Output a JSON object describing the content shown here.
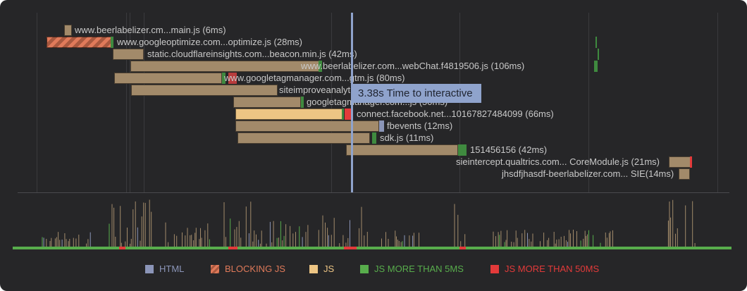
{
  "colors": {
    "background": "#262628",
    "html": "#8b95b8",
    "blocking_js": "#e07a5a",
    "js": "#edc584",
    "js_muted": "#a28a6a",
    "js_more_than_5ms": "#58ad4c",
    "js_more_than_50ms": "#e33a3a",
    "tti": "#8fa3cc"
  },
  "requests": [
    {
      "label": "www.beerlabelizer.cm...main.js (6ms)"
    },
    {
      "label": "www.googleoptimize.com...optimize.js (28ms)"
    },
    {
      "label": "static.cloudflareinsights.com...beacon.min.js (42ms)"
    },
    {
      "label": "www.beerlabelizer.com...webChat.f4819506.js (106ms)"
    },
    {
      "label": "www.googletagmanager.com...gtm.js (80ms)"
    },
    {
      "label": "siteimproveanalytics...js (...ms)"
    },
    {
      "label": "googletagmanager.com...js (50ms)"
    },
    {
      "label": "connect.facebook.net...10167827484099 (66ms)"
    },
    {
      "label": "fbevents (12ms)"
    },
    {
      "label": "sdk.js (11ms)"
    },
    {
      "label": "151456156 (42ms)"
    },
    {
      "label": "sieintercept.qualtrics.com... CoreModule.js (21ms)"
    },
    {
      "label": "jhsdfjhasdf-beerlabelizer.com... SIE(14ms)"
    }
  ],
  "tti": {
    "label": "3.38s Time to interactive"
  },
  "legend": [
    {
      "label": "HTML",
      "color": "#8b95b8"
    },
    {
      "label": "BLOCKING JS",
      "color": "#e07a5a"
    },
    {
      "label": "JS",
      "color": "#edc584"
    },
    {
      "label": "JS MORE THAN 5MS",
      "color": "#58ad4c"
    },
    {
      "label": "JS MORE THAN 50MS",
      "color": "#e33a3a"
    }
  ]
}
